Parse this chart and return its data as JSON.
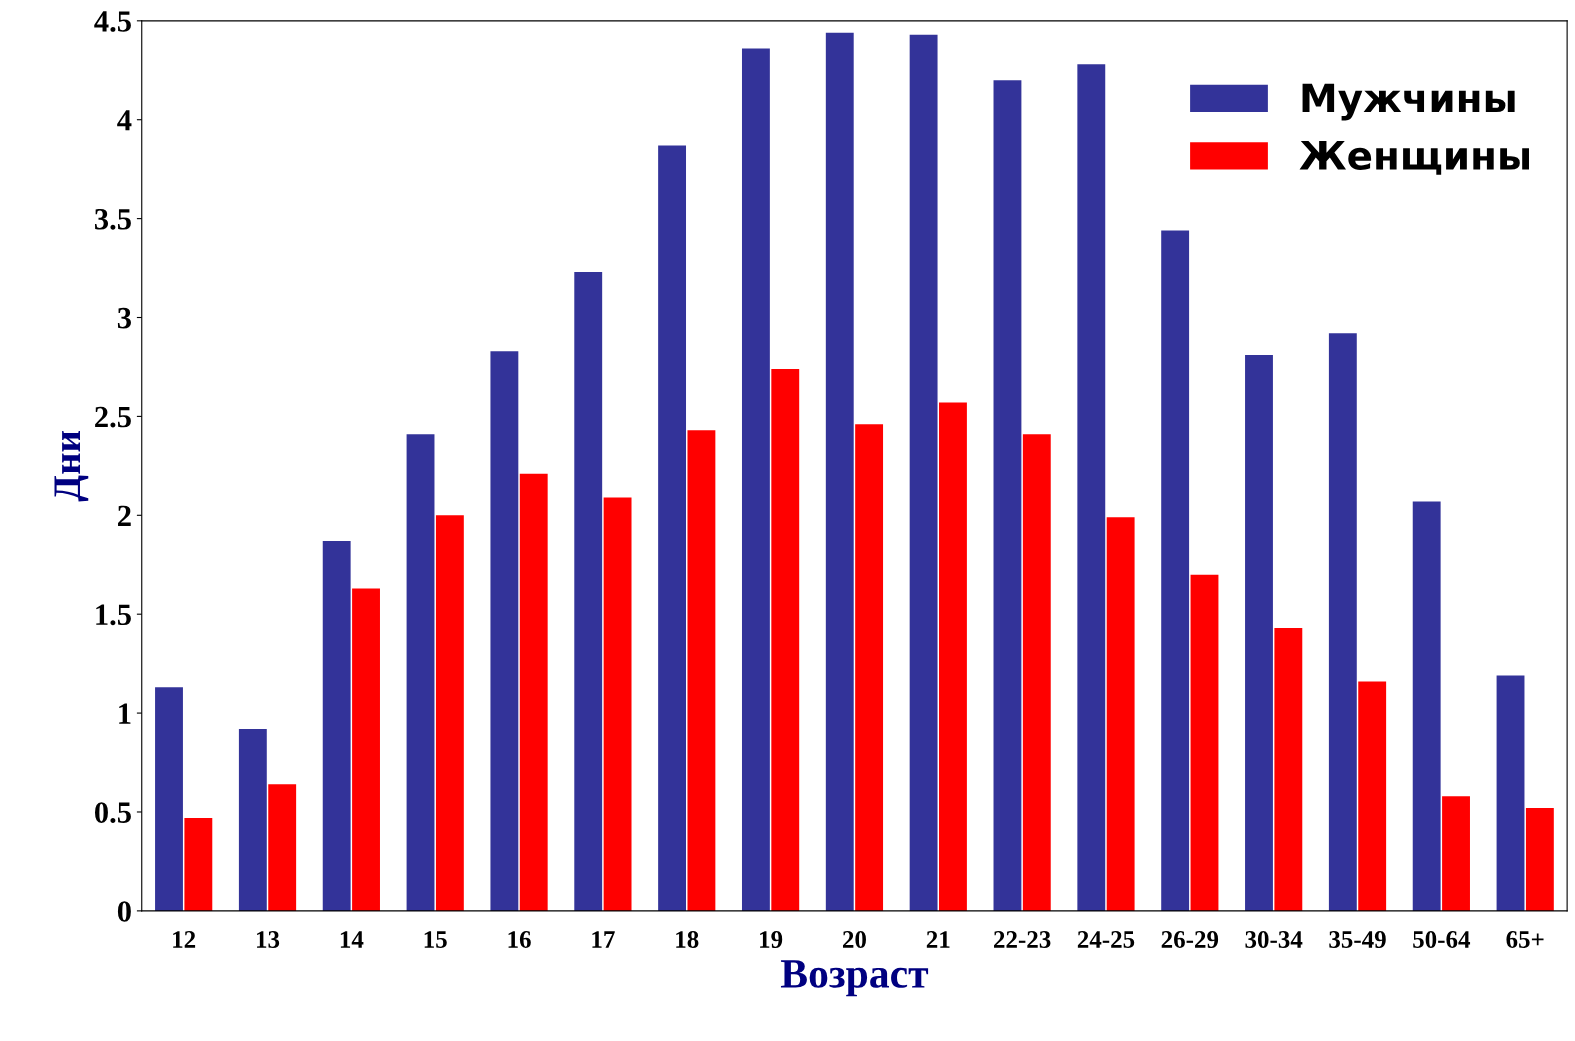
{
  "chart_data": {
    "type": "bar",
    "xlabel": "Возраст",
    "ylabel": "Дни",
    "categories": [
      "12",
      "13",
      "14",
      "15",
      "16",
      "17",
      "18",
      "19",
      "20",
      "21",
      "22-23",
      "24-25",
      "26-29",
      "30-34",
      "35-49",
      "50-64",
      "65+"
    ],
    "series": [
      {
        "name": "Мужчины",
        "color": "#333399",
        "values": [
          1.13,
          0.92,
          1.87,
          2.41,
          2.83,
          3.23,
          3.87,
          4.36,
          4.44,
          4.43,
          4.2,
          4.28,
          3.44,
          2.81,
          2.92,
          2.07,
          1.19
        ]
      },
      {
        "name": "Женщины",
        "color": "#ff0000",
        "values": [
          0.47,
          0.64,
          1.63,
          2.0,
          2.21,
          2.09,
          2.43,
          2.74,
          2.46,
          2.57,
          2.41,
          1.99,
          1.7,
          1.43,
          1.16,
          0.58,
          0.52
        ]
      }
    ],
    "ylim": [
      0,
      4.5
    ],
    "yticks": [
      0,
      0.5,
      1,
      1.5,
      2,
      2.5,
      3,
      3.5,
      4,
      4.5
    ],
    "grid": false,
    "legend": "top right"
  }
}
